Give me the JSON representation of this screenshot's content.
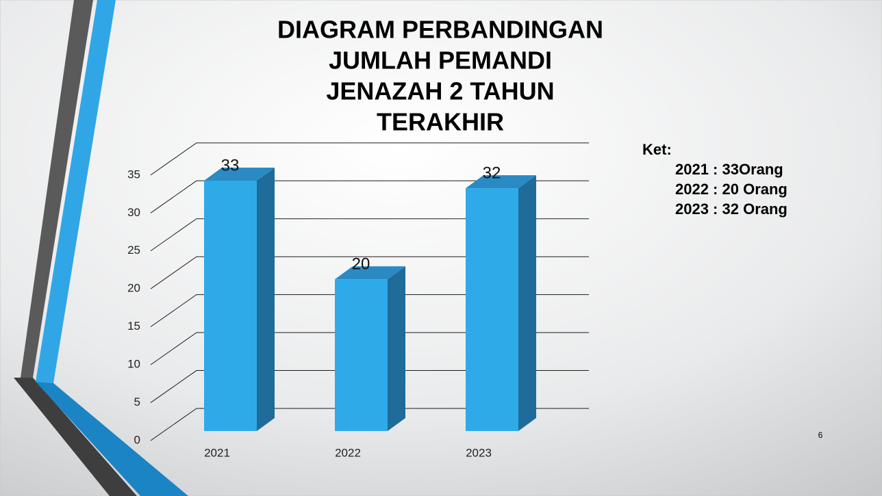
{
  "chart_data": {
    "type": "bar3d",
    "title_lines": [
      "DIAGRAM PERBANDINGAN",
      "JUMLAH PEMANDI",
      "JENAZAH 2 TAHUN",
      "TERAKHIR"
    ],
    "categories": [
      "2021",
      "2022",
      "2023"
    ],
    "values": [
      33,
      20,
      32
    ],
    "color": "#2eaae9",
    "ylim": [
      0,
      35
    ],
    "yticks": [
      0,
      5,
      10,
      15,
      20,
      25,
      30,
      35
    ],
    "grid": true
  },
  "notes": {
    "heading": "Ket:",
    "lines": [
      "2021 : 33Orang",
      "2022 : 20 Orang",
      "2023 : 32 Orang"
    ]
  },
  "slide_number": "6"
}
